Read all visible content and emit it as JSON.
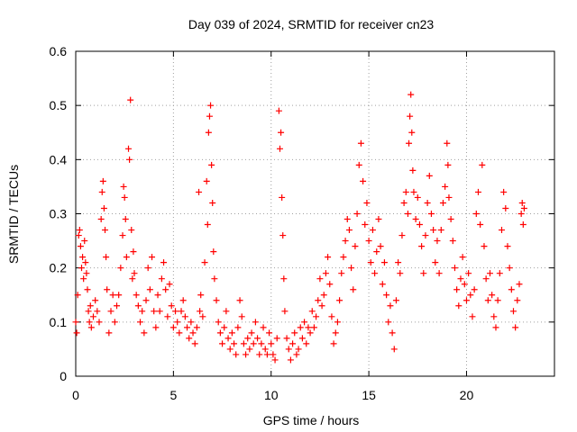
{
  "chart_data": {
    "type": "scatter",
    "title": "Day 039 of 2024, SRMTID for receiver cn23",
    "xlabel": "GPS time / hours",
    "ylabel": "SRMTID / TECUs",
    "xlim": [
      0,
      24.5
    ],
    "ylim": [
      0,
      0.6
    ],
    "xticks": [
      0,
      5,
      10,
      15,
      20
    ],
    "xtick_labels": [
      "0",
      "5",
      "10",
      "15",
      "20"
    ],
    "yticks": [
      0,
      0.1,
      0.2,
      0.3,
      0.4,
      0.5,
      0.6
    ],
    "ytick_labels": [
      "0",
      "0.1",
      "0.2",
      "0.3",
      "0.4",
      "0.5",
      "0.6"
    ],
    "grid": true,
    "marker": "plus",
    "color": "#ff0000",
    "series": [
      {
        "name": "SRMTID",
        "points": [
          [
            0.0,
            0.1
          ],
          [
            0.05,
            0.08
          ],
          [
            0.1,
            0.15
          ],
          [
            0.15,
            0.26
          ],
          [
            0.2,
            0.27
          ],
          [
            0.25,
            0.24
          ],
          [
            0.3,
            0.2
          ],
          [
            0.35,
            0.22
          ],
          [
            0.4,
            0.18
          ],
          [
            0.45,
            0.25
          ],
          [
            0.5,
            0.21
          ],
          [
            0.55,
            0.19
          ],
          [
            0.6,
            0.16
          ],
          [
            0.65,
            0.12
          ],
          [
            0.7,
            0.1
          ],
          [
            0.75,
            0.13
          ],
          [
            0.8,
            0.09
          ],
          [
            0.9,
            0.11
          ],
          [
            1.0,
            0.14
          ],
          [
            1.1,
            0.12
          ],
          [
            1.2,
            0.1
          ],
          [
            1.3,
            0.29
          ],
          [
            1.35,
            0.34
          ],
          [
            1.4,
            0.36
          ],
          [
            1.45,
            0.31
          ],
          [
            1.5,
            0.27
          ],
          [
            1.55,
            0.22
          ],
          [
            1.6,
            0.16
          ],
          [
            1.7,
            0.08
          ],
          [
            1.8,
            0.12
          ],
          [
            1.9,
            0.15
          ],
          [
            2.0,
            0.1
          ],
          [
            2.1,
            0.13
          ],
          [
            2.2,
            0.15
          ],
          [
            2.3,
            0.2
          ],
          [
            2.4,
            0.26
          ],
          [
            2.45,
            0.35
          ],
          [
            2.5,
            0.33
          ],
          [
            2.55,
            0.29
          ],
          [
            2.6,
            0.22
          ],
          [
            2.7,
            0.42
          ],
          [
            2.75,
            0.4
          ],
          [
            2.8,
            0.51
          ],
          [
            2.85,
            0.27
          ],
          [
            2.9,
            0.18
          ],
          [
            2.95,
            0.23
          ],
          [
            3.0,
            0.19
          ],
          [
            3.1,
            0.15
          ],
          [
            3.2,
            0.13
          ],
          [
            3.3,
            0.1
          ],
          [
            3.4,
            0.12
          ],
          [
            3.5,
            0.08
          ],
          [
            3.6,
            0.14
          ],
          [
            3.7,
            0.2
          ],
          [
            3.8,
            0.16
          ],
          [
            3.9,
            0.22
          ],
          [
            4.0,
            0.12
          ],
          [
            4.1,
            0.09
          ],
          [
            4.2,
            0.15
          ],
          [
            4.3,
            0.12
          ],
          [
            4.4,
            0.18
          ],
          [
            4.5,
            0.21
          ],
          [
            4.6,
            0.16
          ],
          [
            4.7,
            0.11
          ],
          [
            4.8,
            0.17
          ],
          [
            4.9,
            0.13
          ],
          [
            5.0,
            0.09
          ],
          [
            5.1,
            0.12
          ],
          [
            5.2,
            0.1
          ],
          [
            5.3,
            0.08
          ],
          [
            5.4,
            0.12
          ],
          [
            5.5,
            0.14
          ],
          [
            5.6,
            0.11
          ],
          [
            5.7,
            0.09
          ],
          [
            5.8,
            0.07
          ],
          [
            5.9,
            0.1
          ],
          [
            6.0,
            0.08
          ],
          [
            6.1,
            0.06
          ],
          [
            6.2,
            0.09
          ],
          [
            6.3,
            0.34
          ],
          [
            6.35,
            0.12
          ],
          [
            6.4,
            0.15
          ],
          [
            6.5,
            0.11
          ],
          [
            6.6,
            0.21
          ],
          [
            6.7,
            0.36
          ],
          [
            6.75,
            0.28
          ],
          [
            6.8,
            0.45
          ],
          [
            6.85,
            0.48
          ],
          [
            6.9,
            0.5
          ],
          [
            6.95,
            0.39
          ],
          [
            7.0,
            0.32
          ],
          [
            7.05,
            0.23
          ],
          [
            7.1,
            0.18
          ],
          [
            7.2,
            0.14
          ],
          [
            7.3,
            0.1
          ],
          [
            7.4,
            0.08
          ],
          [
            7.5,
            0.06
          ],
          [
            7.6,
            0.09
          ],
          [
            7.7,
            0.12
          ],
          [
            7.8,
            0.07
          ],
          [
            7.9,
            0.05
          ],
          [
            8.0,
            0.08
          ],
          [
            8.1,
            0.06
          ],
          [
            8.2,
            0.04
          ],
          [
            8.3,
            0.09
          ],
          [
            8.4,
            0.14
          ],
          [
            8.5,
            0.11
          ],
          [
            8.6,
            0.06
          ],
          [
            8.7,
            0.04
          ],
          [
            8.8,
            0.07
          ],
          [
            8.9,
            0.05
          ],
          [
            9.0,
            0.08
          ],
          [
            9.1,
            0.06
          ],
          [
            9.2,
            0.1
          ],
          [
            9.3,
            0.07
          ],
          [
            9.4,
            0.04
          ],
          [
            9.5,
            0.06
          ],
          [
            9.6,
            0.09
          ],
          [
            9.7,
            0.05
          ],
          [
            9.8,
            0.04
          ],
          [
            9.9,
            0.08
          ],
          [
            10.0,
            0.06
          ],
          [
            10.1,
            0.04
          ],
          [
            10.2,
            0.03
          ],
          [
            10.3,
            0.07
          ],
          [
            10.4,
            0.49
          ],
          [
            10.45,
            0.42
          ],
          [
            10.5,
            0.45
          ],
          [
            10.55,
            0.33
          ],
          [
            10.6,
            0.26
          ],
          [
            10.65,
            0.18
          ],
          [
            10.7,
            0.12
          ],
          [
            10.8,
            0.07
          ],
          [
            10.9,
            0.05
          ],
          [
            11.0,
            0.03
          ],
          [
            11.1,
            0.06
          ],
          [
            11.2,
            0.08
          ],
          [
            11.3,
            0.04
          ],
          [
            11.4,
            0.05
          ],
          [
            11.5,
            0.09
          ],
          [
            11.6,
            0.07
          ],
          [
            11.7,
            0.1
          ],
          [
            11.8,
            0.06
          ],
          [
            11.9,
            0.09
          ],
          [
            12.0,
            0.08
          ],
          [
            12.1,
            0.12
          ],
          [
            12.2,
            0.09
          ],
          [
            12.3,
            0.11
          ],
          [
            12.4,
            0.14
          ],
          [
            12.5,
            0.18
          ],
          [
            12.6,
            0.13
          ],
          [
            12.7,
            0.15
          ],
          [
            12.8,
            0.19
          ],
          [
            12.9,
            0.22
          ],
          [
            13.0,
            0.17
          ],
          [
            13.1,
            0.11
          ],
          [
            13.2,
            0.06
          ],
          [
            13.3,
            0.08
          ],
          [
            13.4,
            0.1
          ],
          [
            13.5,
            0.14
          ],
          [
            13.6,
            0.19
          ],
          [
            13.7,
            0.22
          ],
          [
            13.8,
            0.25
          ],
          [
            13.9,
            0.29
          ],
          [
            14.0,
            0.27
          ],
          [
            14.1,
            0.2
          ],
          [
            14.2,
            0.16
          ],
          [
            14.3,
            0.24
          ],
          [
            14.4,
            0.3
          ],
          [
            14.5,
            0.39
          ],
          [
            14.6,
            0.43
          ],
          [
            14.7,
            0.36
          ],
          [
            14.8,
            0.28
          ],
          [
            14.9,
            0.32
          ],
          [
            15.0,
            0.25
          ],
          [
            15.1,
            0.21
          ],
          [
            15.2,
            0.27
          ],
          [
            15.3,
            0.19
          ],
          [
            15.4,
            0.23
          ],
          [
            15.5,
            0.29
          ],
          [
            15.6,
            0.24
          ],
          [
            15.7,
            0.17
          ],
          [
            15.8,
            0.21
          ],
          [
            15.9,
            0.15
          ],
          [
            16.0,
            0.1
          ],
          [
            16.1,
            0.13
          ],
          [
            16.2,
            0.08
          ],
          [
            16.3,
            0.05
          ],
          [
            16.4,
            0.14
          ],
          [
            16.5,
            0.21
          ],
          [
            16.6,
            0.19
          ],
          [
            16.7,
            0.26
          ],
          [
            16.8,
            0.32
          ],
          [
            16.9,
            0.34
          ],
          [
            17.0,
            0.3
          ],
          [
            17.05,
            0.43
          ],
          [
            17.1,
            0.48
          ],
          [
            17.15,
            0.52
          ],
          [
            17.2,
            0.45
          ],
          [
            17.25,
            0.38
          ],
          [
            17.3,
            0.34
          ],
          [
            17.4,
            0.29
          ],
          [
            17.5,
            0.33
          ],
          [
            17.6,
            0.28
          ],
          [
            17.7,
            0.24
          ],
          [
            17.8,
            0.19
          ],
          [
            17.9,
            0.26
          ],
          [
            18.0,
            0.32
          ],
          [
            18.1,
            0.37
          ],
          [
            18.2,
            0.3
          ],
          [
            18.3,
            0.27
          ],
          [
            18.4,
            0.21
          ],
          [
            18.5,
            0.25
          ],
          [
            18.6,
            0.19
          ],
          [
            18.7,
            0.27
          ],
          [
            18.8,
            0.32
          ],
          [
            18.9,
            0.35
          ],
          [
            19.0,
            0.43
          ],
          [
            19.05,
            0.39
          ],
          [
            19.1,
            0.33
          ],
          [
            19.2,
            0.29
          ],
          [
            19.3,
            0.25
          ],
          [
            19.4,
            0.2
          ],
          [
            19.5,
            0.16
          ],
          [
            19.6,
            0.13
          ],
          [
            19.7,
            0.18
          ],
          [
            19.8,
            0.22
          ],
          [
            19.9,
            0.17
          ],
          [
            20.0,
            0.14
          ],
          [
            20.1,
            0.19
          ],
          [
            20.2,
            0.15
          ],
          [
            20.3,
            0.11
          ],
          [
            20.4,
            0.16
          ],
          [
            20.5,
            0.3
          ],
          [
            20.6,
            0.34
          ],
          [
            20.7,
            0.28
          ],
          [
            20.8,
            0.39
          ],
          [
            20.9,
            0.24
          ],
          [
            21.0,
            0.18
          ],
          [
            21.1,
            0.14
          ],
          [
            21.2,
            0.19
          ],
          [
            21.3,
            0.15
          ],
          [
            21.4,
            0.11
          ],
          [
            21.5,
            0.09
          ],
          [
            21.6,
            0.14
          ],
          [
            21.7,
            0.19
          ],
          [
            21.8,
            0.27
          ],
          [
            21.9,
            0.34
          ],
          [
            22.0,
            0.31
          ],
          [
            22.1,
            0.24
          ],
          [
            22.2,
            0.2
          ],
          [
            22.3,
            0.16
          ],
          [
            22.4,
            0.12
          ],
          [
            22.5,
            0.09
          ],
          [
            22.6,
            0.14
          ],
          [
            22.7,
            0.17
          ],
          [
            22.8,
            0.3
          ],
          [
            22.85,
            0.32
          ],
          [
            22.9,
            0.28
          ],
          [
            22.95,
            0.31
          ]
        ]
      }
    ]
  }
}
